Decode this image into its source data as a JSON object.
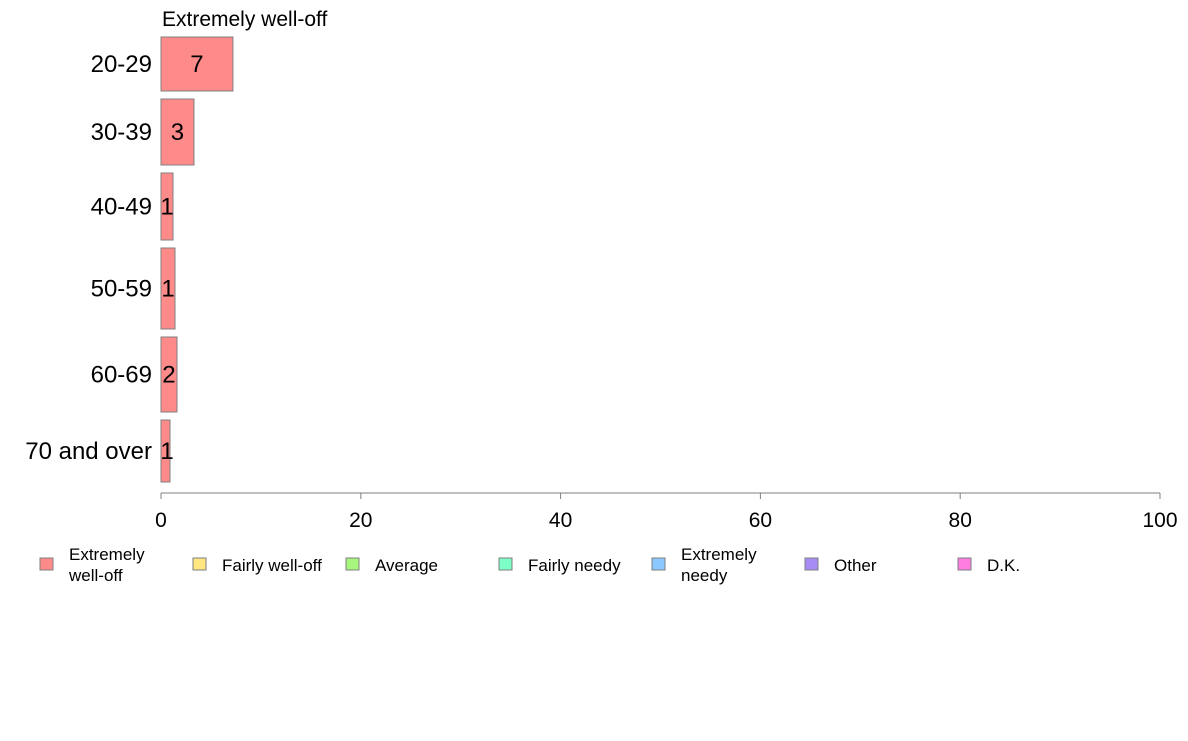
{
  "chart_data": {
    "type": "bar",
    "orientation": "horizontal",
    "title": "Extremely well-off",
    "categories": [
      "20-29",
      "30-39",
      "40-49",
      "50-59",
      "60-69",
      "70 and over"
    ],
    "series": [
      {
        "name": "Extremely well-off",
        "values": [
          7.2,
          3.3,
          1.2,
          1.4,
          1.6,
          0.9
        ],
        "labels": [
          "7",
          "3",
          "1",
          "1",
          "2",
          "1"
        ],
        "color": "#ff8a8a"
      }
    ],
    "xlim": [
      0,
      100
    ],
    "xticks": [
      "0",
      "20",
      "40",
      "60",
      "80",
      "100"
    ],
    "grid": false,
    "legend_position": "bottom",
    "legend": [
      {
        "label": "Extremely well-off",
        "color": "#ff8a8a"
      },
      {
        "label": "Fairly well-off",
        "color": "#ffe680"
      },
      {
        "label": "Average",
        "color": "#a8f57d"
      },
      {
        "label": "Fairly needy",
        "color": "#7dffc8"
      },
      {
        "label": "Extremely needy",
        "color": "#8ac8ff"
      },
      {
        "label": "Other",
        "color": "#a88cf5"
      },
      {
        "label": "D.K.",
        "color": "#ff7de0"
      }
    ]
  }
}
